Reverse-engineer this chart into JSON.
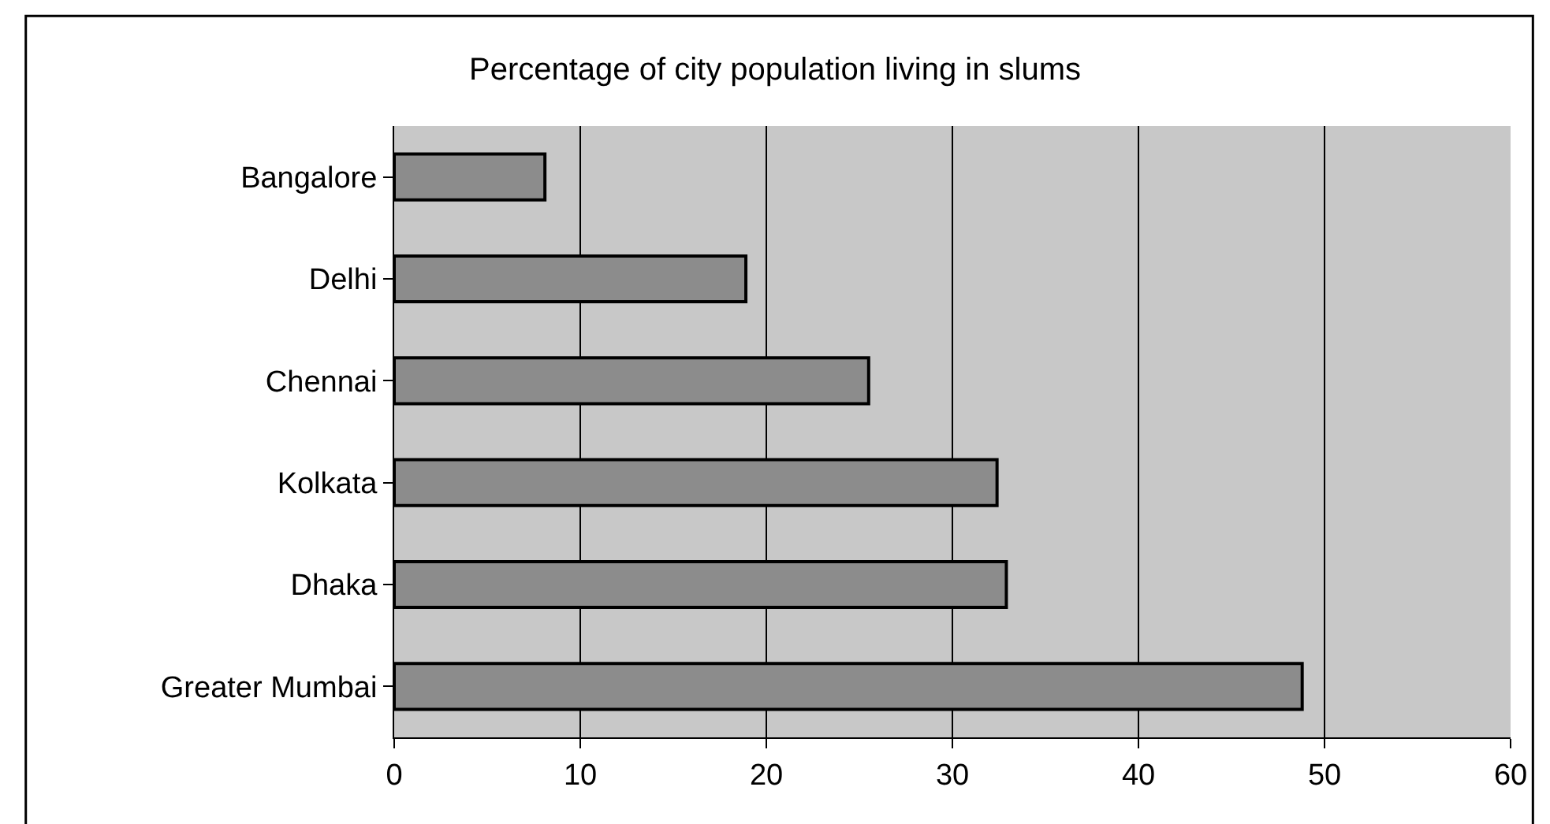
{
  "chart_data": {
    "type": "bar",
    "orientation": "horizontal",
    "title": "Percentage of city population living in slums",
    "categories": [
      "Bangalore",
      "Delhi",
      "Chennai",
      "Kolkata",
      "Dhaka",
      "Greater Mumbai"
    ],
    "values": [
      8.1,
      18.9,
      25.5,
      32.4,
      32.9,
      48.8
    ],
    "color": "#8c8c8c",
    "xlim": [
      0,
      60
    ],
    "xticks": [
      0,
      10,
      20,
      30,
      40,
      50,
      60
    ],
    "grid": "x"
  }
}
